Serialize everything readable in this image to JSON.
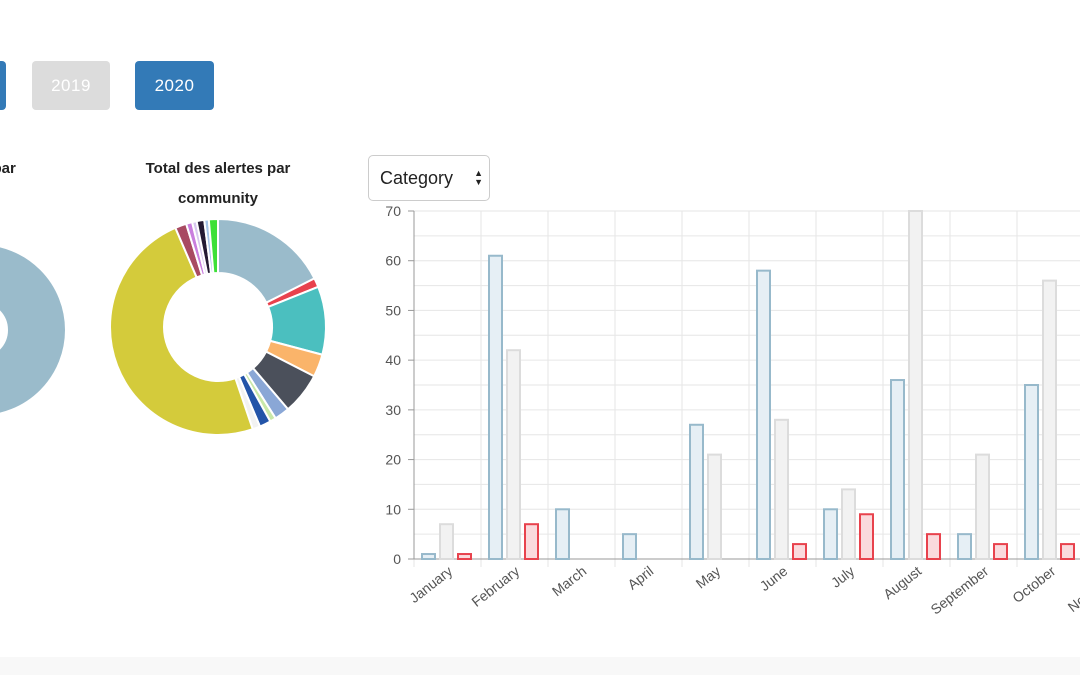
{
  "year_buttons": [
    {
      "label": ""
    },
    {
      "label": "2019"
    },
    {
      "label": "2020"
    }
  ],
  "donut_titles": [
    "s par",
    "Total des alertes par community"
  ],
  "donut_colors": {
    "left_donut": "#9abbcb",
    "segments": [
      "#9abbcb",
      "#e8424d",
      "#4bbfbf",
      "#fab46a",
      "#4b505b",
      "#8aa7d6",
      "#c9e8a8",
      "#2354a8",
      "#f2f2f2",
      "#d4cb3b",
      "#a84a62",
      "#c97ede",
      "#d8c8f0",
      "#241a33",
      "#a6c4e8",
      "#3de038"
    ],
    "segment_fractions": [
      0.155,
      0.012,
      0.09,
      0.03,
      0.055,
      0.02,
      0.008,
      0.015,
      0.01,
      0.43,
      0.015,
      0.008,
      0.006,
      0.01,
      0.006,
      0.012
    ]
  },
  "select": {
    "value": "Category"
  },
  "chart_data": {
    "type": "bar",
    "categories": [
      "January",
      "February",
      "March",
      "April",
      "May",
      "June",
      "July",
      "August",
      "September",
      "October",
      "November"
    ],
    "series": [
      {
        "values": [
          1,
          61,
          10,
          5,
          27,
          58,
          10,
          36,
          5,
          35,
          0
        ],
        "fill": "#e6eff5",
        "stroke": "#97b9cb"
      },
      {
        "values": [
          7,
          42,
          0,
          0,
          21,
          28,
          14,
          70,
          21,
          56,
          0
        ],
        "fill": "#f2f2f2",
        "stroke": "#dcdcdc"
      },
      {
        "values": [
          1,
          7,
          0,
          0,
          0,
          3,
          9,
          5,
          3,
          3,
          0
        ],
        "fill": "#fadadd",
        "stroke": "#e8424d"
      }
    ],
    "ylim": [
      0,
      70
    ],
    "yticks": [
      "0",
      "10",
      "20",
      "30",
      "40",
      "50",
      "60",
      "70"
    ],
    "grid": true
  }
}
